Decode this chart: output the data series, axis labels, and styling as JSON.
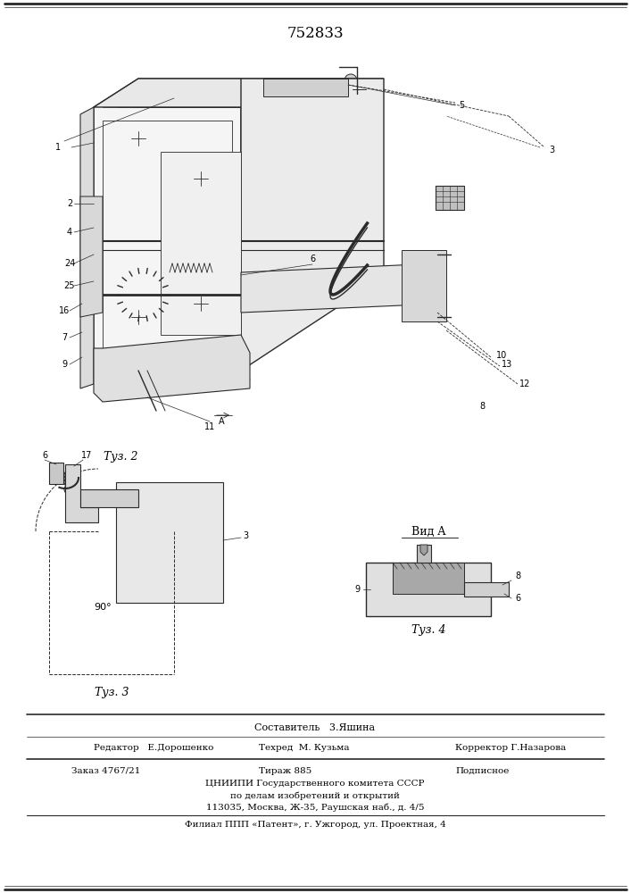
{
  "patent_number": "752833",
  "fig2_label": "Τуз. 2",
  "fig3_label": "Τуз. 3",
  "fig4_label": "Τуз. 4",
  "vid_a_label": "Вид A",
  "sestavitel": "Составитель   3.Яшина",
  "redaktor": "Редактор   Е.Дорошенко",
  "tehred": "Техред  М. Кузьма",
  "korrektor": "Корректор Г.Назарова",
  "zakaz": "Заказ 4767/21",
  "tirazh": "Тираж 885",
  "podpisnoe": "Подписное",
  "tsnipi": "ЦНИИПИ Государственного комитета СССР",
  "po_delam": "по делам изобретений и открытий",
  "adres": "113035, Москва, Ж-35, Раушская наб., д. 4/5",
  "filial": "Филиал ППП «Патент», г. Ужгород, ул. Проектная, 4",
  "bg_color": "#ffffff",
  "text_color": "#000000",
  "line_color": "#2a2a2a"
}
